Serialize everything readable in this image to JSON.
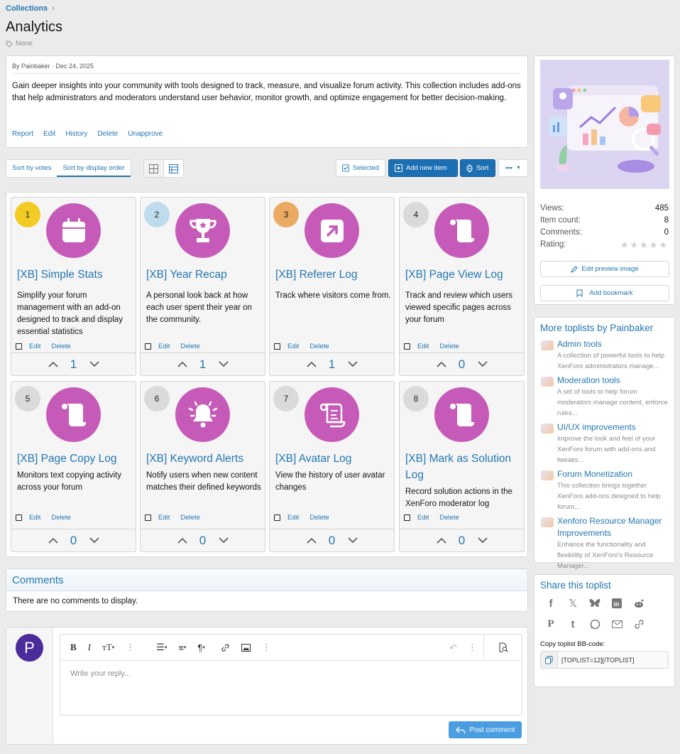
{
  "breadcrumb": {
    "label": "Collections"
  },
  "page": {
    "title": "Analytics",
    "tag": "None"
  },
  "description": {
    "byline": "By Painbaker · Dec 24, 2025",
    "text": "Gain deeper insights into your community with tools designed to track, measure, and visualize forum activity. This collection includes add-ons that help administrators and moderators understand user behavior, monitor growth, and optimize engagement for better decision-making.",
    "actions": [
      "Report",
      "Edit",
      "History",
      "Delete",
      "Unapprove"
    ]
  },
  "toolbar": {
    "sort_votes": "Sort by votes",
    "sort_display": "Sort by display order",
    "selected": "Selected",
    "add_item": "Add new item",
    "sort": "Sort",
    "more": "•••"
  },
  "items": [
    {
      "num": "1",
      "num_color": "#f2cb24",
      "title": "[XB] Simple Stats",
      "desc": "Simplify your forum management with an add-on designed to track and display essential statistics",
      "votes": "1",
      "icon": "calendar-icon"
    },
    {
      "num": "2",
      "num_color": "#bfdcef",
      "title": "[XB] Year Recap",
      "desc": "A personal look back at how each user spent their year on the community.",
      "votes": "1",
      "icon": "trophy-icon"
    },
    {
      "num": "3",
      "num_color": "#ebaa62",
      "title": "[XB] Referer Log",
      "desc": "Track where visitors come from.",
      "votes": "1",
      "icon": "external-arrow-icon"
    },
    {
      "num": "4",
      "num_color": "#dadada",
      "title": "[XB] Page View Log",
      "desc": "Track and review which users viewed specific pages across your forum",
      "votes": "0",
      "icon": "scroll-icon"
    },
    {
      "num": "5",
      "num_color": "#dadada",
      "title": "[XB] Page Copy Log",
      "desc": "Monitors text copying activity across your forum",
      "votes": "0",
      "icon": "scroll-icon"
    },
    {
      "num": "6",
      "num_color": "#dadada",
      "title": "[XB] Keyword Alerts",
      "desc": "Notify users when new content matches their defined keywords",
      "votes": "0",
      "icon": "bell-icon"
    },
    {
      "num": "7",
      "num_color": "#dadada",
      "title": "[XB] Avatar Log",
      "desc": "View the history of user avatar changes",
      "votes": "0",
      "icon": "scroll-outline-icon"
    },
    {
      "num": "8",
      "num_color": "#dadada",
      "title": "[XB] Mark as Solution Log",
      "desc": "Record solution actions in the XenForo moderator log",
      "votes": "0",
      "icon": "scroll-icon"
    }
  ],
  "card_actions": {
    "edit": "Edit",
    "delete": "Delete"
  },
  "comments": {
    "title": "Comments",
    "empty": "There are no comments to display."
  },
  "reply": {
    "avatar_letter": "P",
    "placeholder": "Write your reply...",
    "post": "Post comment"
  },
  "sidebar": {
    "stats": [
      {
        "label": "Views:",
        "value": "485"
      },
      {
        "label": "Item count:",
        "value": "8"
      },
      {
        "label": "Comments:",
        "value": "0"
      },
      {
        "label": "Rating:",
        "value": ""
      }
    ],
    "edit_preview": "Edit preview image",
    "add_bookmark": "Add bookmark",
    "more_title": "More toplists by Painbaker",
    "more": [
      {
        "title": "Admin tools",
        "desc": "A collection of powerful tools to help XenForo administrators manage..."
      },
      {
        "title": "Moderation tools",
        "desc": "A set of tools to help forum moderators manage content, enforce rules..."
      },
      {
        "title": "UI/UX improvements",
        "desc": "Improve the look and feel of your XenForo forum with add-ons and tweaks..."
      },
      {
        "title": "Forum Monetization",
        "desc": "This collection brings together XenForo add-ons designed to help forum..."
      },
      {
        "title": "Xenforo Resource Manager Improvements",
        "desc": "Enhance the functionality and flexibility of XenForo's Resource Manager..."
      }
    ],
    "share_title": "Share this toplist",
    "bbcode_label": "Copy toplist BB-code:",
    "bbcode_value": "[TOPLIST=12][/TOPLIST]"
  },
  "colors": {
    "accent": "#2577b1",
    "icon_bg": "#c65ab8",
    "button": "#1c6fb3"
  }
}
